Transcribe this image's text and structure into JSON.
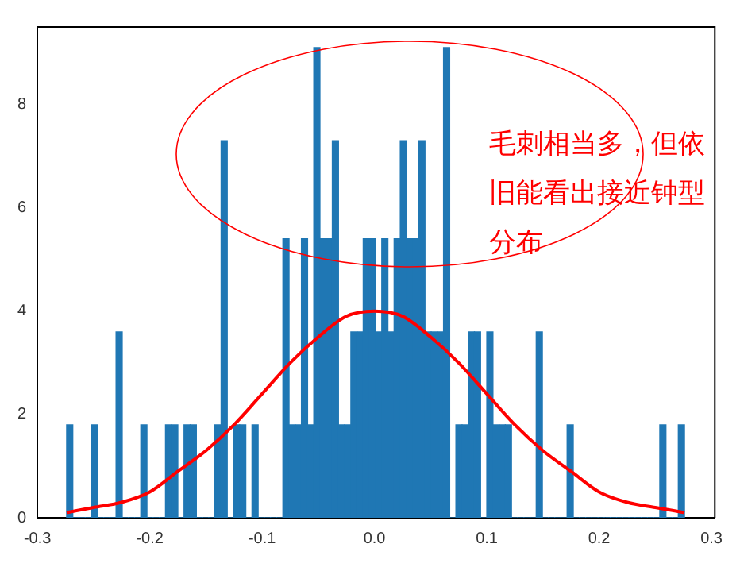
{
  "chart_data": {
    "type": "histogram",
    "bins": [
      -0.274,
      -0.2685,
      -0.263,
      -0.2575,
      -0.252,
      -0.2465,
      -0.241,
      -0.2355,
      -0.23,
      -0.2245,
      -0.219,
      -0.2135,
      -0.208,
      -0.2025,
      -0.197,
      -0.1915,
      -0.186,
      -0.1805,
      -0.175,
      -0.1695,
      -0.164,
      -0.1585,
      -0.153,
      -0.1475,
      -0.142,
      -0.1365,
      -0.131,
      -0.1255,
      -0.12,
      -0.1145,
      -0.109,
      -0.1035,
      -0.098,
      -0.0925,
      -0.087,
      -0.0815,
      -0.076,
      -0.0705,
      -0.065,
      -0.0595,
      -0.054,
      -0.0485,
      -0.043,
      -0.0375,
      -0.032,
      -0.0265,
      -0.021,
      -0.0155,
      -0.01,
      -0.0045,
      0.001,
      0.0065,
      0.012,
      0.0175,
      0.023,
      0.0285,
      0.034,
      0.0395,
      0.045,
      0.0505,
      0.056,
      0.0615,
      0.067,
      0.0725,
      0.078,
      0.0835,
      0.089,
      0.0945,
      0.1,
      0.1055,
      0.111,
      0.1165,
      0.122,
      0.1275,
      0.133,
      0.1385,
      0.144,
      0.1495,
      0.155,
      0.1605,
      0.166,
      0.1715,
      0.177,
      0.1825,
      0.188,
      0.1935,
      0.199,
      0.2045,
      0.21,
      0.2155,
      0.221,
      0.2265,
      0.232,
      0.2375,
      0.243,
      0.2485,
      0.254,
      0.2595,
      0.265,
      0.2705,
      0.276
    ],
    "values": [
      1.8,
      0,
      0,
      0,
      1.8,
      0,
      0,
      0,
      3.6,
      0,
      0,
      0,
      1.8,
      0,
      0,
      0,
      1.8,
      1.8,
      0,
      1.8,
      1.8,
      0,
      0,
      0,
      1.8,
      7.3,
      0,
      1.8,
      1.8,
      0,
      1.8,
      0,
      0,
      0,
      0,
      5.4,
      1.8,
      1.8,
      5.4,
      1.8,
      9.1,
      5.4,
      5.4,
      7.3,
      1.8,
      1.8,
      3.6,
      3.6,
      5.4,
      5.4,
      3.6,
      5.4,
      3.6,
      5.4,
      7.3,
      5.4,
      5.4,
      7.3,
      3.6,
      3.6,
      3.6,
      9.1,
      0,
      1.8,
      1.8,
      3.6,
      3.6,
      0,
      3.6,
      1.8,
      1.8,
      1.8,
      0,
      0,
      0,
      0,
      3.6,
      0,
      0,
      0,
      0,
      1.8,
      0,
      0,
      0,
      0,
      0,
      0,
      0,
      0,
      0,
      0,
      0,
      0,
      0,
      0,
      1.8,
      0,
      0,
      1.8
    ],
    "color": "#1f77b4",
    "series": [
      {
        "type": "line",
        "color": "#ff0000",
        "x": [
          -0.274,
          -0.25,
          -0.225,
          -0.2,
          -0.175,
          -0.15,
          -0.125,
          -0.1,
          -0.075,
          -0.05,
          -0.025,
          0,
          0.025,
          0.05,
          0.075,
          0.1,
          0.125,
          0.15,
          0.175,
          0.2,
          0.225,
          0.25,
          0.276
        ],
        "values": [
          0.1,
          0.2,
          0.3,
          0.5,
          0.9,
          1.3,
          1.8,
          2.4,
          3.0,
          3.5,
          3.9,
          4.0,
          3.9,
          3.5,
          3.0,
          2.4,
          1.8,
          1.3,
          0.9,
          0.5,
          0.3,
          0.2,
          0.1
        ]
      }
    ],
    "annotations": [
      "毛刺相当多，但依旧能看出接近钟型分布"
    ],
    "xlim": [
      -0.3,
      0.303
    ],
    "xticks": [
      -0.3,
      -0.2,
      -0.1,
      {
        "value": 0,
        "label": "0.0"
      },
      0.1,
      0.2,
      0.3
    ],
    "ylim": [
      0,
      9.5
    ],
    "yticks": [
      0,
      2,
      4,
      6,
      8
    ],
    "grid": false,
    "legend": false
  }
}
